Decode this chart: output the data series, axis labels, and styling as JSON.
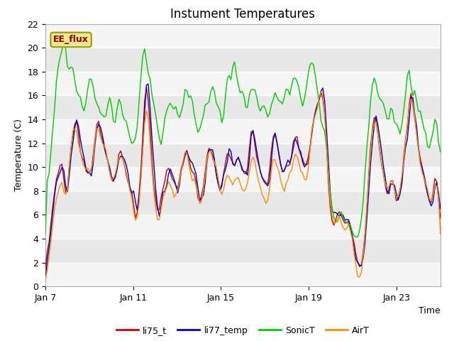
{
  "title": "Instument Temperatures",
  "ylabel": "Temperature (C)",
  "xlabel": "Time",
  "ylim": [
    0,
    22
  ],
  "yticks": [
    0,
    2,
    4,
    6,
    8,
    10,
    12,
    14,
    16,
    18,
    20,
    22
  ],
  "xtick_labels": [
    "Jan 7",
    "Jan 11",
    "Jan 15",
    "Jan 19",
    "Jan 23"
  ],
  "xtick_pos": [
    0,
    4,
    8,
    12,
    16
  ],
  "xlim": [
    0,
    18
  ],
  "annotation": "EE_flux",
  "fig_bg": "#ffffff",
  "plot_bg": "#e8e8e8",
  "band_color": "#f5f5f5",
  "line_colors": {
    "li75_t": "#cc0000",
    "li77_temp": "#0000cc",
    "SonicT": "#00cc00",
    "AirT": "#ff8c00"
  },
  "title_fontsize": 12,
  "tick_fontsize": 9,
  "axis_label_fontsize": 9,
  "legend_fontsize": 9
}
